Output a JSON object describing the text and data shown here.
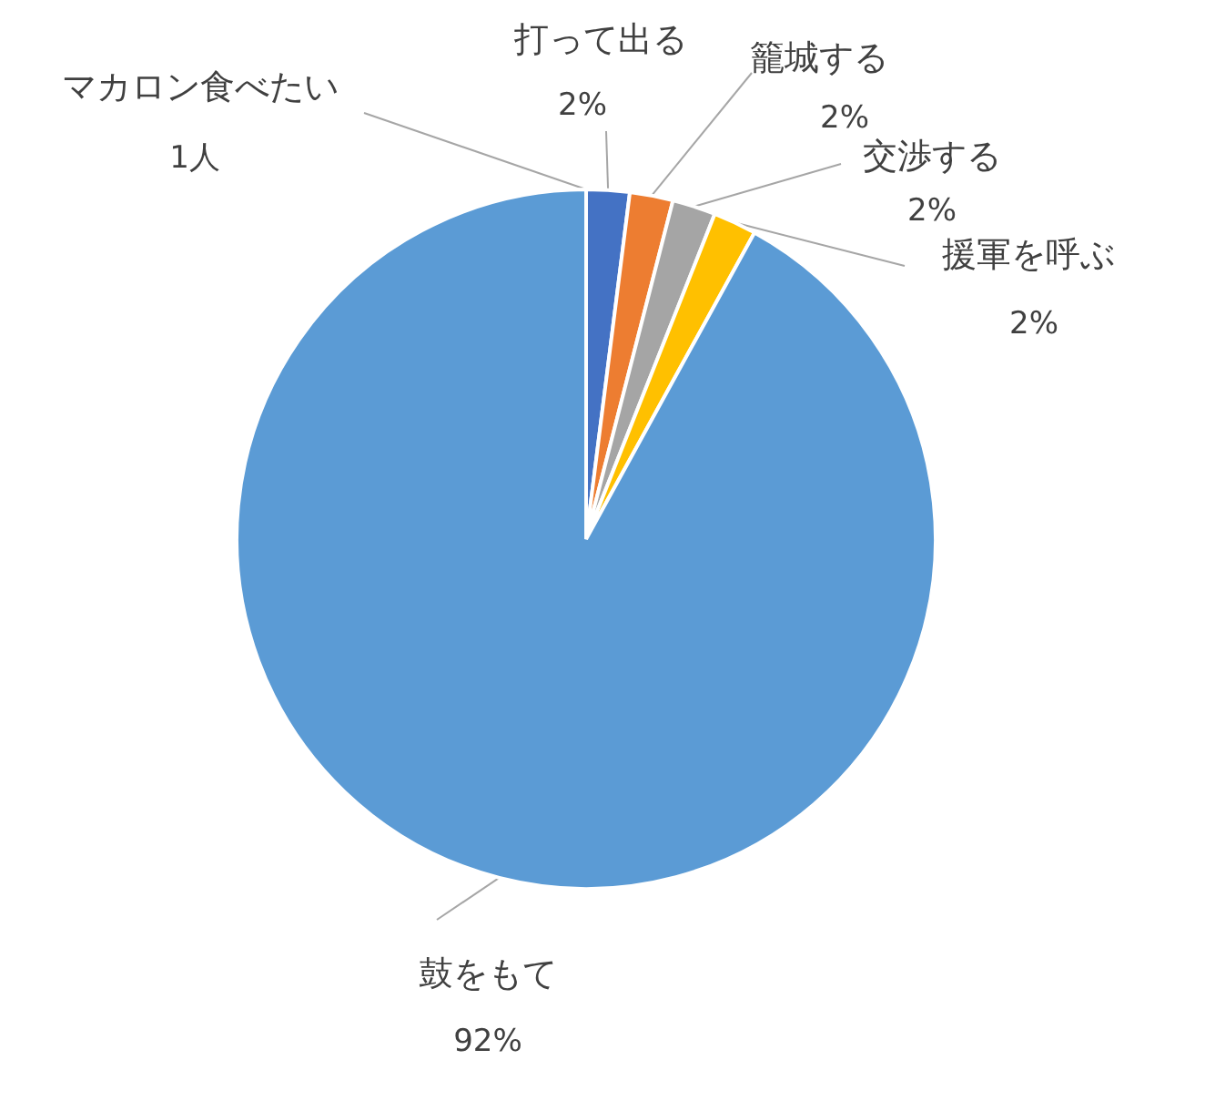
{
  "chart_data": {
    "type": "pie",
    "categories": [
      "マカロン食べたい",
      "打って出る",
      "籠城する",
      "交渉する",
      "援軍を呼ぶ",
      "鼓をもて"
    ],
    "values": [
      0,
      2,
      2,
      2,
      2,
      92
    ],
    "value_labels": [
      null,
      "2%",
      "2%",
      "2%",
      "2%",
      "92%"
    ],
    "colors": [
      "#70ad47",
      "#4472c4",
      "#ed7d31",
      "#a5a5a5",
      "#ffc000",
      "#5b9bd5"
    ],
    "annotations": [
      "1人"
    ]
  }
}
